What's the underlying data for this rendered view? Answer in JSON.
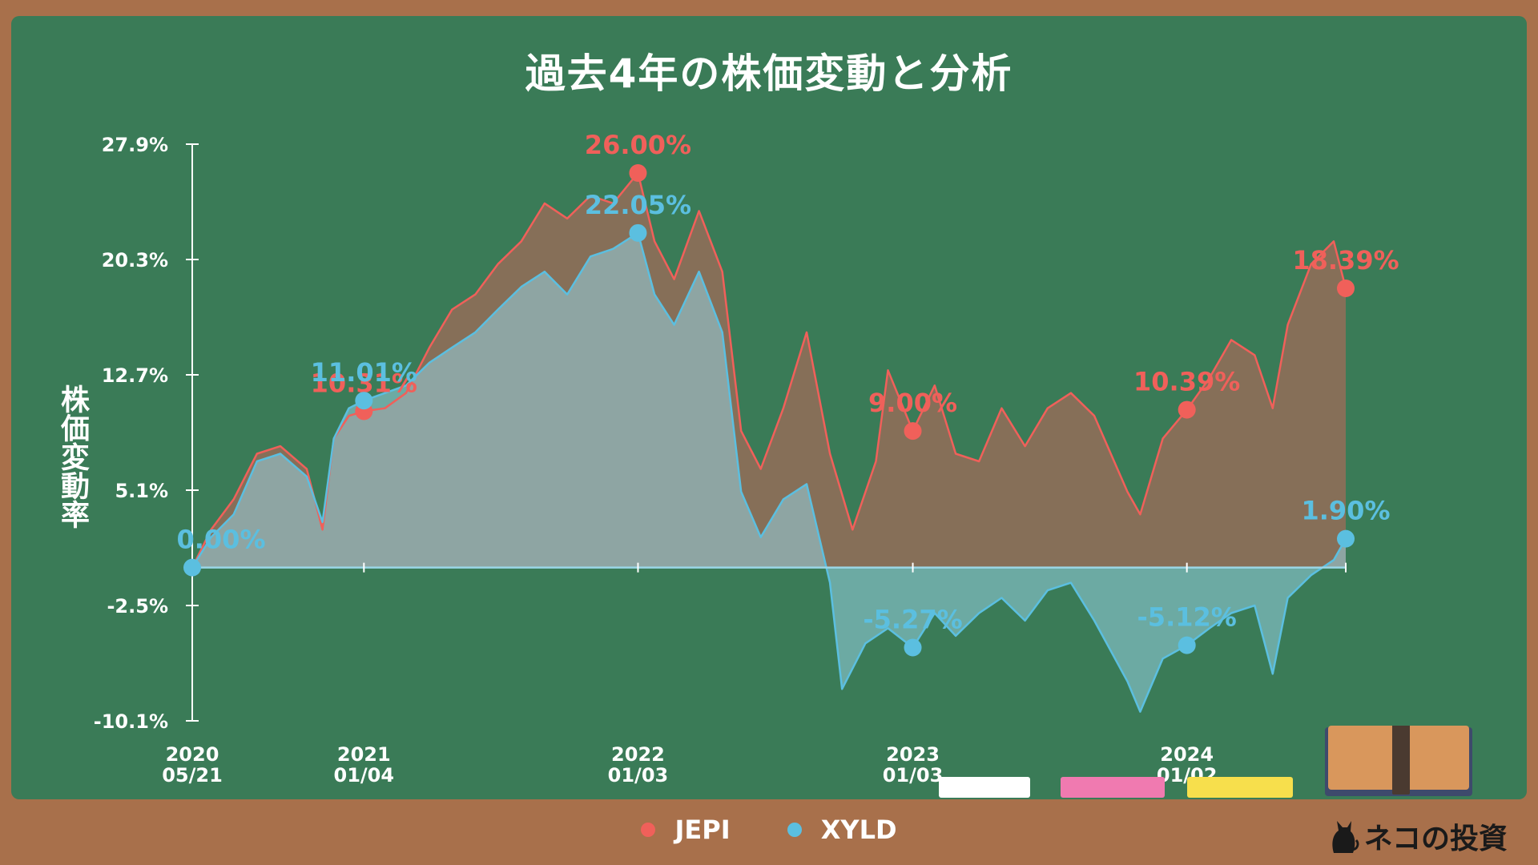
{
  "title": "過去4年の株価変動と分析",
  "ylabel": "株価変動率",
  "legend": [
    {
      "name": "JEPI",
      "color": "#f0605a"
    },
    {
      "name": "XYLD",
      "color": "#5bbfe0"
    }
  ],
  "logo_text": "ネコの投資",
  "chart_data": {
    "type": "area",
    "title": "過去4年の株価変動と分析",
    "ylabel": "株価変動率",
    "ylim": [
      -10.1,
      27.9
    ],
    "yticks": [
      "27.9%",
      "20.3%",
      "12.7%",
      "5.1%",
      "-2.5%",
      "-10.1%"
    ],
    "ytick_values": [
      27.9,
      20.3,
      12.7,
      5.1,
      -2.5,
      -10.1
    ],
    "xticks": [
      {
        "date": "2020-05-21",
        "line1": "2020",
        "line2": "05/21"
      },
      {
        "date": "2021-01-04",
        "line1": "2021",
        "line2": "01/04"
      },
      {
        "date": "2022-01-03",
        "line1": "2022",
        "line2": "01/03"
      },
      {
        "date": "2023-01-03",
        "line1": "2023",
        "line2": "01/03"
      },
      {
        "date": "2024-01-02",
        "line1": "2024",
        "line2": "01/02"
      }
    ],
    "x_end": "2024-07-31",
    "series": [
      {
        "name": "JEPI",
        "color": "#f0605a",
        "points": [
          [
            "2020-05-21",
            0.0
          ],
          [
            "2020-06-15",
            2.5
          ],
          [
            "2020-07-15",
            4.5
          ],
          [
            "2020-08-15",
            7.5
          ],
          [
            "2020-09-15",
            8.0
          ],
          [
            "2020-10-20",
            6.5
          ],
          [
            "2020-11-10",
            2.5
          ],
          [
            "2020-11-25",
            8.5
          ],
          [
            "2020-12-15",
            10.0
          ],
          [
            "2021-01-04",
            10.3
          ],
          [
            "2021-02-01",
            10.5
          ],
          [
            "2021-03-01",
            11.5
          ],
          [
            "2021-04-01",
            14.5
          ],
          [
            "2021-05-01",
            17.0
          ],
          [
            "2021-06-01",
            18.0
          ],
          [
            "2021-07-01",
            20.0
          ],
          [
            "2021-08-01",
            21.5
          ],
          [
            "2021-09-01",
            24.0
          ],
          [
            "2021-10-01",
            23.0
          ],
          [
            "2021-11-01",
            24.5
          ],
          [
            "2021-12-01",
            24.0
          ],
          [
            "2022-01-03",
            26.0
          ],
          [
            "2022-01-25",
            21.5
          ],
          [
            "2022-02-20",
            19.0
          ],
          [
            "2022-03-25",
            23.5
          ],
          [
            "2022-04-25",
            19.5
          ],
          [
            "2022-05-20",
            9.0
          ],
          [
            "2022-06-15",
            6.5
          ],
          [
            "2022-07-15",
            10.5
          ],
          [
            "2022-08-15",
            15.5
          ],
          [
            "2022-09-15",
            7.5
          ],
          [
            "2022-10-15",
            2.5
          ],
          [
            "2022-11-15",
            7.0
          ],
          [
            "2022-12-01",
            13.0
          ],
          [
            "2023-01-03",
            9.0
          ],
          [
            "2023-02-01",
            12.0
          ],
          [
            "2023-03-01",
            7.5
          ],
          [
            "2023-04-01",
            7.0
          ],
          [
            "2023-05-01",
            10.5
          ],
          [
            "2023-06-01",
            8.0
          ],
          [
            "2023-07-01",
            10.5
          ],
          [
            "2023-08-01",
            11.5
          ],
          [
            "2023-09-01",
            10.0
          ],
          [
            "2023-10-15",
            5.0
          ],
          [
            "2023-11-01",
            3.5
          ],
          [
            "2023-12-01",
            8.5
          ],
          [
            "2024-01-02",
            10.4
          ],
          [
            "2024-02-01",
            12.5
          ],
          [
            "2024-03-01",
            15.0
          ],
          [
            "2024-04-01",
            14.0
          ],
          [
            "2024-04-25",
            10.5
          ],
          [
            "2024-05-15",
            16.0
          ],
          [
            "2024-06-15",
            20.0
          ],
          [
            "2024-07-15",
            21.5
          ],
          [
            "2024-07-31",
            18.4
          ]
        ],
        "annotations": [
          {
            "date": "2021-01-04",
            "value": 10.3,
            "label": "10.31%"
          },
          {
            "date": "2022-01-03",
            "value": 26.0,
            "label": "26.00%"
          },
          {
            "date": "2023-01-03",
            "value": 9.0,
            "label": "9.00%"
          },
          {
            "date": "2024-01-02",
            "value": 10.4,
            "label": "10.39%"
          },
          {
            "date": "2024-07-31",
            "value": 18.4,
            "label": "18.39%"
          }
        ]
      },
      {
        "name": "XYLD",
        "color": "#5bbfe0",
        "points": [
          [
            "2020-05-21",
            0.0
          ],
          [
            "2020-06-15",
            2.0
          ],
          [
            "2020-07-15",
            3.5
          ],
          [
            "2020-08-15",
            7.0
          ],
          [
            "2020-09-15",
            7.5
          ],
          [
            "2020-10-20",
            6.0
          ],
          [
            "2020-11-10",
            3.0
          ],
          [
            "2020-11-25",
            8.5
          ],
          [
            "2020-12-15",
            10.5
          ],
          [
            "2021-01-04",
            11.0
          ],
          [
            "2021-02-01",
            11.5
          ],
          [
            "2021-03-01",
            12.0
          ],
          [
            "2021-04-01",
            13.5
          ],
          [
            "2021-05-01",
            14.5
          ],
          [
            "2021-06-01",
            15.5
          ],
          [
            "2021-07-01",
            17.0
          ],
          [
            "2021-08-01",
            18.5
          ],
          [
            "2021-09-01",
            19.5
          ],
          [
            "2021-10-01",
            18.0
          ],
          [
            "2021-11-01",
            20.5
          ],
          [
            "2021-12-01",
            21.0
          ],
          [
            "2022-01-03",
            22.05
          ],
          [
            "2022-01-25",
            18.0
          ],
          [
            "2022-02-20",
            16.0
          ],
          [
            "2022-03-25",
            19.5
          ],
          [
            "2022-04-25",
            15.5
          ],
          [
            "2022-05-20",
            5.0
          ],
          [
            "2022-06-15",
            2.0
          ],
          [
            "2022-07-15",
            4.5
          ],
          [
            "2022-08-15",
            5.5
          ],
          [
            "2022-09-15",
            -1.0
          ],
          [
            "2022-10-01",
            -8.0
          ],
          [
            "2022-11-01",
            -5.0
          ],
          [
            "2022-12-01",
            -4.0
          ],
          [
            "2023-01-03",
            -5.27
          ],
          [
            "2023-02-01",
            -3.0
          ],
          [
            "2023-03-01",
            -4.5
          ],
          [
            "2023-04-01",
            -3.0
          ],
          [
            "2023-05-01",
            -2.0
          ],
          [
            "2023-06-01",
            -3.5
          ],
          [
            "2023-07-01",
            -1.5
          ],
          [
            "2023-08-01",
            -1.0
          ],
          [
            "2023-09-01",
            -3.5
          ],
          [
            "2023-10-15",
            -7.5
          ],
          [
            "2023-11-01",
            -9.5
          ],
          [
            "2023-12-01",
            -6.0
          ],
          [
            "2024-01-02",
            -5.12
          ],
          [
            "2024-02-01",
            -4.0
          ],
          [
            "2024-03-01",
            -3.0
          ],
          [
            "2024-04-01",
            -2.5
          ],
          [
            "2024-04-25",
            -7.0
          ],
          [
            "2024-05-15",
            -2.0
          ],
          [
            "2024-06-15",
            -0.5
          ],
          [
            "2024-07-15",
            0.5
          ],
          [
            "2024-07-31",
            1.9
          ]
        ],
        "annotations": [
          {
            "date": "2020-05-21",
            "value": 0.0,
            "label": "0.00%"
          },
          {
            "date": "2021-01-04",
            "value": 11.0,
            "label": "11.01%"
          },
          {
            "date": "2022-01-03",
            "value": 22.05,
            "label": "22.05%"
          },
          {
            "date": "2023-01-03",
            "value": -5.27,
            "label": "-5.27%"
          },
          {
            "date": "2024-01-02",
            "value": -5.12,
            "label": "-5.12%"
          },
          {
            "date": "2024-07-31",
            "value": 1.9,
            "label": "1.90%"
          }
        ]
      }
    ]
  }
}
